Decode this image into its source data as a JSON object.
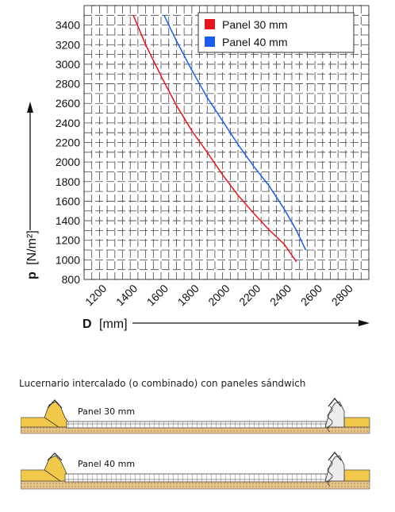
{
  "chart_data": {
    "type": "line",
    "xlabel_bold": "D",
    "xlabel_unit": "[mm]",
    "ylabel_bold": "p",
    "ylabel_unit": "[N/m²]",
    "xlim": [
      1100,
      2950
    ],
    "ylim": [
      800,
      3600
    ],
    "x_ticks": [
      1200,
      1400,
      1600,
      1800,
      2000,
      2200,
      2400,
      2600,
      2800
    ],
    "y_ticks": [
      800,
      1000,
      1200,
      1400,
      1600,
      1800,
      2000,
      2200,
      2400,
      2600,
      2800,
      3000,
      3200,
      3400
    ],
    "grid": true,
    "legend_position": "top-right",
    "series": [
      {
        "name": "Panel 30 mm",
        "color": "#e8141b",
        "points": [
          [
            1420,
            3500
          ],
          [
            1500,
            3200
          ],
          [
            1600,
            2880
          ],
          [
            1700,
            2580
          ],
          [
            1800,
            2320
          ],
          [
            1900,
            2100
          ],
          [
            2000,
            1870
          ],
          [
            2100,
            1660
          ],
          [
            2200,
            1480
          ],
          [
            2300,
            1310
          ],
          [
            2400,
            1160
          ],
          [
            2480,
            980
          ]
        ]
      },
      {
        "name": "Panel 40 mm",
        "color": "#1a5cf0",
        "points": [
          [
            1620,
            3500
          ],
          [
            1700,
            3240
          ],
          [
            1800,
            2940
          ],
          [
            1900,
            2660
          ],
          [
            2000,
            2420
          ],
          [
            2100,
            2180
          ],
          [
            2200,
            1960
          ],
          [
            2300,
            1760
          ],
          [
            2400,
            1520
          ],
          [
            2480,
            1300
          ],
          [
            2540,
            1100
          ]
        ]
      }
    ]
  },
  "caption": "Lucernario intercalado (o combinado) con paneles  sándwich",
  "diagrams": [
    {
      "label": "Panel 30 mm"
    },
    {
      "label": "Panel 40 mm"
    }
  ]
}
